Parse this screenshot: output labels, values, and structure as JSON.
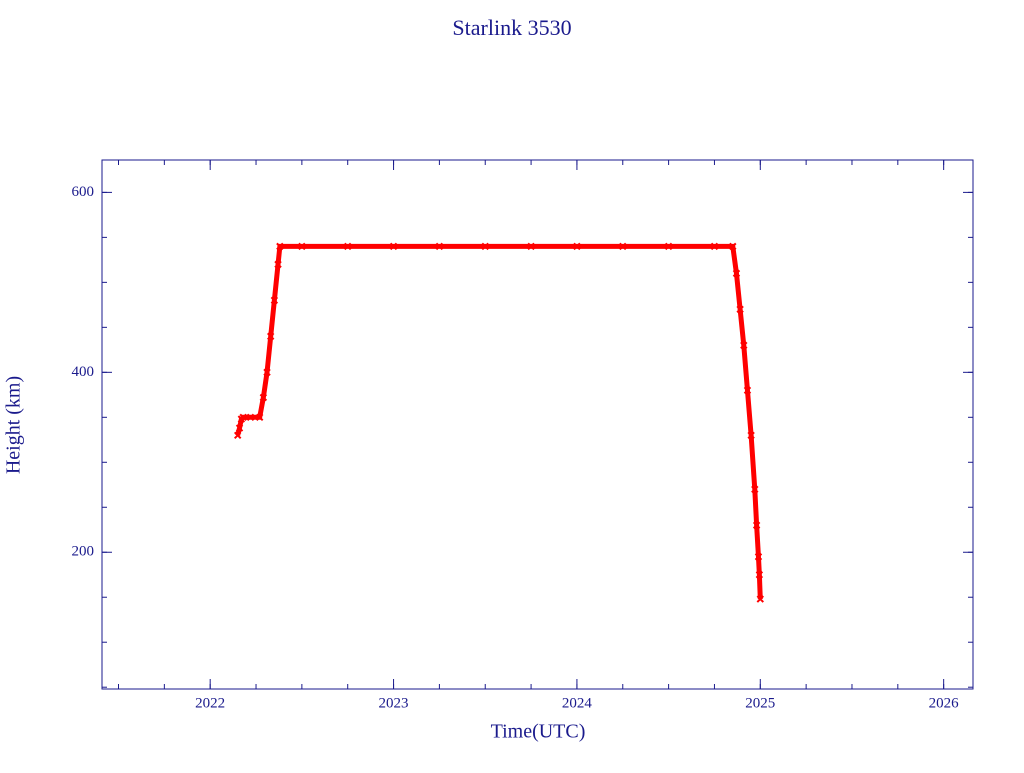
{
  "chart_data": {
    "type": "scatter",
    "title": "Starlink 3530",
    "x_label": "Time(UTC)",
    "y_label": "Height (km)",
    "xlim": [
      2021.41,
      2026.16
    ],
    "ylim": [
      48,
      636
    ],
    "xticks": [
      2022,
      2023,
      2024,
      2025,
      2026
    ],
    "yticks": [
      200,
      400,
      600
    ],
    "x_minor_divisions": 4,
    "y_minor_divisions": 4,
    "series": [
      {
        "color": "#ff0000",
        "x": [
          2022.15,
          2022.16,
          2022.17,
          2022.18,
          2022.22,
          2022.27,
          2022.29,
          2022.31,
          2022.33,
          2022.35,
          2022.37,
          2022.38,
          2022.5,
          2022.75,
          2023.0,
          2023.25,
          2023.5,
          2023.75,
          2024.0,
          2024.25,
          2024.5,
          2024.75,
          2024.85,
          2024.87,
          2024.89,
          2024.91,
          2024.93,
          2024.95,
          2024.97,
          2024.98,
          2024.99,
          2024.995,
          2025.0
        ],
        "values": [
          330,
          338,
          348,
          350,
          350,
          350,
          372,
          400,
          440,
          480,
          520,
          540,
          540,
          540,
          540,
          540,
          540,
          540,
          540,
          540,
          540,
          540,
          540,
          510,
          470,
          430,
          380,
          330,
          270,
          230,
          195,
          175,
          148
        ]
      }
    ]
  }
}
